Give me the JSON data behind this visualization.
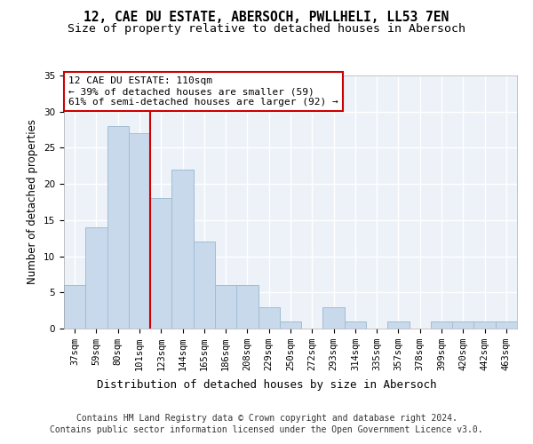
{
  "title1": "12, CAE DU ESTATE, ABERSOCH, PWLLHELI, LL53 7EN",
  "title2": "Size of property relative to detached houses in Abersoch",
  "xlabel": "Distribution of detached houses by size in Abersoch",
  "ylabel": "Number of detached properties",
  "footer1": "Contains HM Land Registry data © Crown copyright and database right 2024.",
  "footer2": "Contains public sector information licensed under the Open Government Licence v3.0.",
  "categories": [
    "37sqm",
    "59sqm",
    "80sqm",
    "101sqm",
    "123sqm",
    "144sqm",
    "165sqm",
    "186sqm",
    "208sqm",
    "229sqm",
    "250sqm",
    "272sqm",
    "293sqm",
    "314sqm",
    "335sqm",
    "357sqm",
    "378sqm",
    "399sqm",
    "420sqm",
    "442sqm",
    "463sqm"
  ],
  "values": [
    6,
    14,
    28,
    27,
    18,
    22,
    12,
    6,
    6,
    3,
    1,
    0,
    3,
    1,
    0,
    1,
    0,
    1,
    1,
    1,
    1
  ],
  "bar_color": "#c9d9ec",
  "bar_edgecolor": "#a0bdd4",
  "bar_linewidth": 0.7,
  "vline_color": "#cc0000",
  "vline_x": 3.5,
  "annotation_text": "12 CAE DU ESTATE: 110sqm\n← 39% of detached houses are smaller (59)\n61% of semi-detached houses are larger (92) →",
  "ylim": [
    0,
    35
  ],
  "yticks": [
    0,
    5,
    10,
    15,
    20,
    25,
    30,
    35
  ],
  "background_color": "#edf2f9",
  "grid_color": "#ffffff",
  "title_fontsize": 10.5,
  "subtitle_fontsize": 9.5,
  "xlabel_fontsize": 9,
  "ylabel_fontsize": 8.5,
  "tick_fontsize": 7.5,
  "annotation_fontsize": 8,
  "footer_fontsize": 7
}
